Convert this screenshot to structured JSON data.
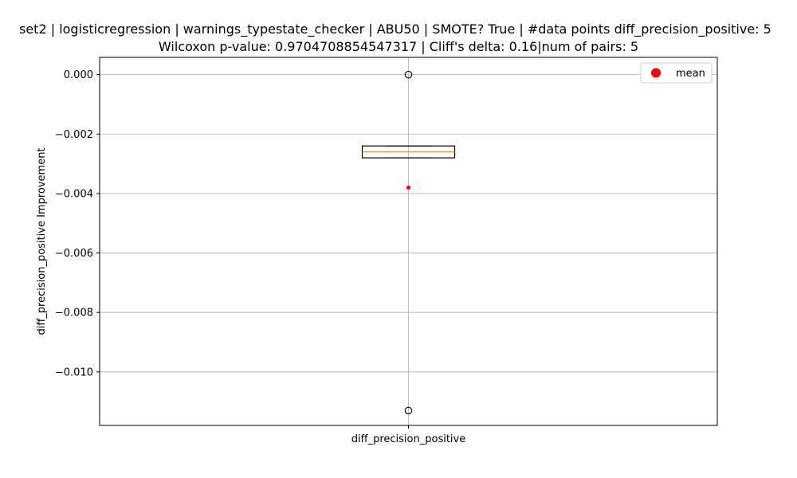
{
  "chart_data": {
    "type": "box",
    "title_line1": "set2 | logisticregression | warnings_typestate_checker | ABU50 | SMOTE? True | #data points diff_precision_positive: 5",
    "title_line2": "Wilcoxon p-value: 0.9704708854547317 | Cliff's delta: 0.16|num of pairs: 5",
    "xlabel": "",
    "ylabel": "diff_precision_positive Improvement",
    "categories": [
      "diff_precision_positive"
    ],
    "ylim": [
      -0.0118,
      0.00058
    ],
    "yticks": [
      0.0,
      -0.002,
      -0.004,
      -0.006,
      -0.008,
      -0.01
    ],
    "ytick_labels": [
      "0.000",
      "−0.002",
      "−0.004",
      "−0.006",
      "−0.008",
      "−0.010"
    ],
    "grid": true,
    "legend": {
      "position": "top-right",
      "entries": [
        {
          "label": "mean",
          "marker": "circle",
          "color": "#ff0000"
        }
      ]
    },
    "boxes": [
      {
        "name": "diff_precision_positive",
        "q1": -0.0028,
        "median": -0.0026,
        "q3": -0.0024,
        "whisker_low": -0.0028,
        "whisker_high": -0.0024,
        "mean": -0.0038,
        "fliers": [
          0.0,
          -0.0113
        ]
      }
    ],
    "colors": {
      "box": "#000000",
      "median": "#ff7f0e",
      "mean": "#ff0000",
      "grid": "#b0b0b0"
    }
  }
}
